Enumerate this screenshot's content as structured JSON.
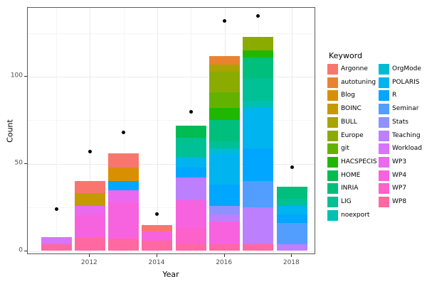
{
  "chart_data": {
    "type": "bar",
    "stacked": true,
    "title": "",
    "xlabel": "Year",
    "ylabel": "Count",
    "legend_title": "Keyword",
    "legend_position": "right",
    "grid": "on",
    "y_ticks": [
      0,
      50,
      100
    ],
    "y_minor": [
      25,
      75,
      125
    ],
    "x_ticks": [
      2012,
      2014,
      2016,
      2018
    ],
    "x_minor": [
      2011,
      2013,
      2015,
      2017
    ],
    "ylim": [
      -7,
      144
    ],
    "xlim": [
      2010.5,
      2018.5
    ],
    "keywords": [
      {
        "name": "Argonne",
        "color": "#F8766D"
      },
      {
        "name": "autotuning",
        "color": "#EA8331"
      },
      {
        "name": "Blog",
        "color": "#D89000"
      },
      {
        "name": "BOINC",
        "color": "#C59900"
      },
      {
        "name": "BULL",
        "color": "#ABA300"
      },
      {
        "name": "Europe",
        "color": "#8CAB00"
      },
      {
        "name": "git",
        "color": "#64B200"
      },
      {
        "name": "HACSPECIS",
        "color": "#21B700"
      },
      {
        "name": "HOME",
        "color": "#00BC51"
      },
      {
        "name": "INRIA",
        "color": "#00BF7D"
      },
      {
        "name": "LIG",
        "color": "#00C096"
      },
      {
        "name": "noexport",
        "color": "#00C0B4"
      },
      {
        "name": "OrgMode",
        "color": "#00BCD3"
      },
      {
        "name": "POLARIS",
        "color": "#00B4EF"
      },
      {
        "name": "R",
        "color": "#00A6FF"
      },
      {
        "name": "Seminar",
        "color": "#529EFF"
      },
      {
        "name": "Stats",
        "color": "#8F91FF"
      },
      {
        "name": "Teaching",
        "color": "#BC80FF"
      },
      {
        "name": "Workload",
        "color": "#D874FD"
      },
      {
        "name": "WP3",
        "color": "#EA69EF"
      },
      {
        "name": "WP4",
        "color": "#F763DF"
      },
      {
        "name": "WP7",
        "color": "#FD61CA"
      },
      {
        "name": "WP8",
        "color": "#FF68A1"
      }
    ],
    "bars": [
      {
        "year": 2011,
        "total": 8,
        "segments_top_to_bottom": [
          {
            "keyword": "Workload",
            "value": 4
          },
          {
            "keyword": "WP8",
            "value": 4
          }
        ]
      },
      {
        "year": 2012,
        "total": 40,
        "segments_top_to_bottom": [
          {
            "keyword": "Argonne",
            "value": 7
          },
          {
            "keyword": "BOINC",
            "value": 7
          },
          {
            "keyword": "WP3",
            "value": 5
          },
          {
            "keyword": "WP4",
            "value": 13
          },
          {
            "keyword": "WP8",
            "value": 8
          }
        ]
      },
      {
        "year": 2013,
        "total": 56,
        "segments_top_to_bottom": [
          {
            "keyword": "Argonne",
            "value": 8
          },
          {
            "keyword": "Blog",
            "value": 8
          },
          {
            "keyword": "R",
            "value": 5
          },
          {
            "keyword": "WP3",
            "value": 7
          },
          {
            "keyword": "WP4",
            "value": 21
          },
          {
            "keyword": "WP8",
            "value": 7
          }
        ]
      },
      {
        "year": 2014,
        "total": 15,
        "segments_top_to_bottom": [
          {
            "keyword": "Argonne",
            "value": 4
          },
          {
            "keyword": "WP4",
            "value": 5
          },
          {
            "keyword": "WP8",
            "value": 6
          }
        ]
      },
      {
        "year": 2015,
        "total": 72,
        "segments_top_to_bottom": [
          {
            "keyword": "HOME",
            "value": 7
          },
          {
            "keyword": "LIG",
            "value": 11
          },
          {
            "keyword": "POLARIS",
            "value": 6
          },
          {
            "keyword": "R",
            "value": 6
          },
          {
            "keyword": "Teaching",
            "value": 13
          },
          {
            "keyword": "WP4",
            "value": 16
          },
          {
            "keyword": "WP7",
            "value": 9
          },
          {
            "keyword": "WP8",
            "value": 4
          }
        ]
      },
      {
        "year": 2016,
        "total": 112,
        "segments_top_to_bottom": [
          {
            "keyword": "autotuning",
            "value": 5
          },
          {
            "keyword": "BULL",
            "value": 4
          },
          {
            "keyword": "Europe",
            "value": 12
          },
          {
            "keyword": "git",
            "value": 9
          },
          {
            "keyword": "HACSPECIS",
            "value": 7
          },
          {
            "keyword": "INRIA",
            "value": 12
          },
          {
            "keyword": "LIG",
            "value": 4
          },
          {
            "keyword": "OrgMode",
            "value": 3
          },
          {
            "keyword": "POLARIS",
            "value": 18
          },
          {
            "keyword": "R",
            "value": 12
          },
          {
            "keyword": "Stats",
            "value": 5
          },
          {
            "keyword": "Teaching",
            "value": 4
          },
          {
            "keyword": "WP4",
            "value": 13
          },
          {
            "keyword": "WP8",
            "value": 4
          }
        ]
      },
      {
        "year": 2017,
        "total": 123,
        "segments_top_to_bottom": [
          {
            "keyword": "Europe",
            "value": 8
          },
          {
            "keyword": "HACSPECIS",
            "value": 4
          },
          {
            "keyword": "INRIA",
            "value": 12
          },
          {
            "keyword": "LIG",
            "value": 13
          },
          {
            "keyword": "noexport",
            "value": 4
          },
          {
            "keyword": "POLARIS",
            "value": 23
          },
          {
            "keyword": "R",
            "value": 19
          },
          {
            "keyword": "Seminar",
            "value": 15
          },
          {
            "keyword": "Teaching",
            "value": 21
          },
          {
            "keyword": "WP8",
            "value": 4
          }
        ]
      },
      {
        "year": 2018,
        "total": 37,
        "segments_top_to_bottom": [
          {
            "keyword": "INRIA",
            "value": 7
          },
          {
            "keyword": "LIG",
            "value": 4
          },
          {
            "keyword": "POLARIS",
            "value": 5
          },
          {
            "keyword": "R",
            "value": 5
          },
          {
            "keyword": "Seminar",
            "value": 12
          },
          {
            "keyword": "Teaching",
            "value": 4
          }
        ]
      }
    ],
    "points": [
      {
        "year": 2011,
        "value": 24
      },
      {
        "year": 2012,
        "value": 57
      },
      {
        "year": 2013,
        "value": 68
      },
      {
        "year": 2014,
        "value": 21
      },
      {
        "year": 2015,
        "value": 80
      },
      {
        "year": 2016,
        "value": 132
      },
      {
        "year": 2017,
        "value": 135
      },
      {
        "year": 2018,
        "value": 48
      }
    ]
  }
}
